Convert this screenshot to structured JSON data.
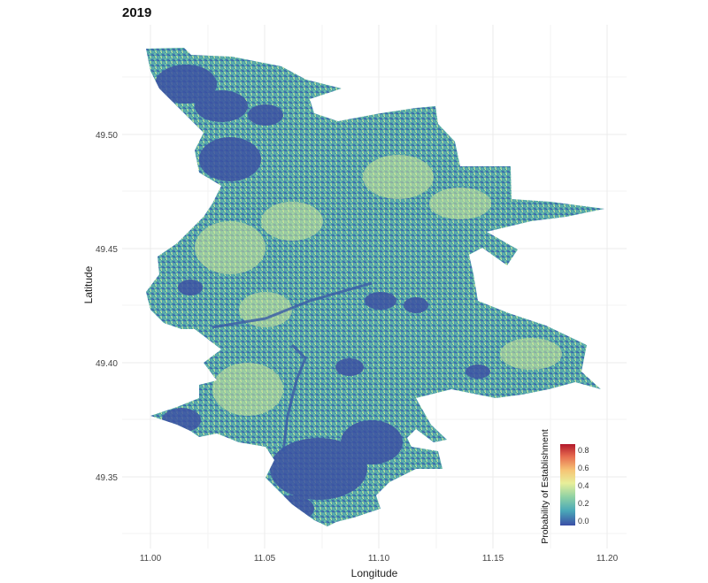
{
  "title": "2019",
  "x_axis": {
    "label": "Longitude",
    "ticks": [
      "11.00",
      "11.05",
      "11.10",
      "11.15",
      "11.20"
    ],
    "tick_values": [
      11.0,
      11.05,
      11.1,
      11.15,
      11.2
    ]
  },
  "y_axis": {
    "label": "Latitude",
    "ticks": [
      "49.35",
      "49.40",
      "49.45",
      "49.50"
    ],
    "tick_values": [
      49.35,
      49.4,
      49.45,
      49.5
    ]
  },
  "legend": {
    "title": "Probability of Establishment",
    "ticks": [
      "0.0",
      "0.2",
      "0.4",
      "0.6",
      "0.8"
    ],
    "tick_values": [
      0.0,
      0.2,
      0.4,
      0.6,
      0.8
    ],
    "range": [
      0.0,
      0.9
    ],
    "palette": [
      "#3b4ea6",
      "#4aa8b8",
      "#8fd1a4",
      "#e8ef9a",
      "#f6c475",
      "#e66b4f",
      "#b2182b"
    ]
  },
  "map": {
    "type": "raster",
    "grid": true,
    "xlim": [
      10.985,
      11.205
    ],
    "ylim": [
      49.325,
      49.545
    ],
    "colors": {
      "base": "#4a9aa8",
      "low": "#3e5aa8",
      "mid": "#6fbfae",
      "high": "#d9ec9c"
    }
  }
}
